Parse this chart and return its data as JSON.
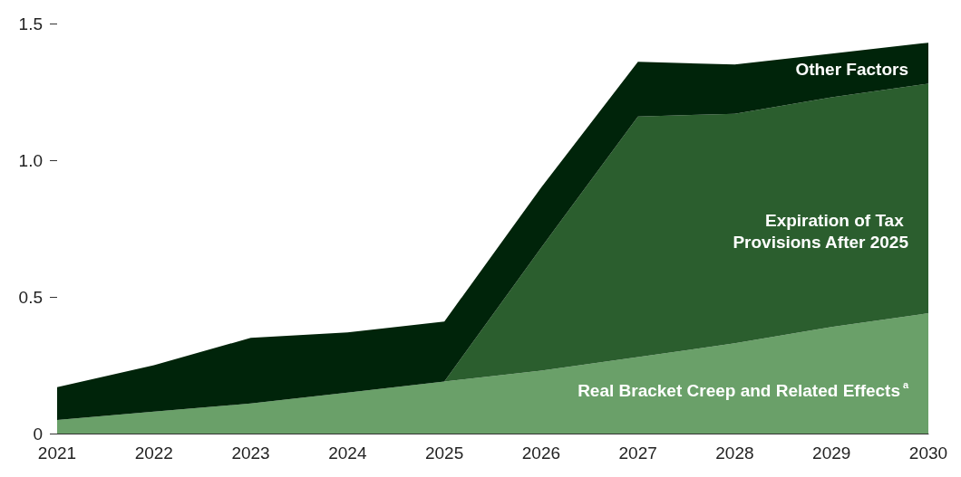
{
  "chart_data": {
    "type": "area",
    "stacked": true,
    "categories": [
      "2021",
      "2022",
      "2023",
      "2024",
      "2025",
      "2026",
      "2027",
      "2028",
      "2029",
      "2030"
    ],
    "series": [
      {
        "name": "Real Bracket Creep and Related Effects$^{a}$",
        "color": "#6aa069",
        "values": [
          0.05,
          0.08,
          0.11,
          0.15,
          0.19,
          0.23,
          0.28,
          0.33,
          0.39,
          0.44
        ]
      },
      {
        "name": "Expiration of Tax Provisions After 2025",
        "color": "#2b5e2e",
        "values": [
          0,
          0,
          0,
          0,
          0,
          0.45,
          0.88,
          0.84,
          0.84,
          0.84
        ]
      },
      {
        "name": "Other Factors",
        "color": "#00240a",
        "values": [
          0.12,
          0.17,
          0.24,
          0.22,
          0.22,
          0.22,
          0.2,
          0.18,
          0.16,
          0.15
        ]
      }
    ],
    "ylim": [
      0,
      1.5
    ],
    "yticks": [
      0,
      0.5,
      {
        "value": 1,
        "label": "1.0"
      },
      1.5
    ],
    "grid": false,
    "legend": false
  }
}
